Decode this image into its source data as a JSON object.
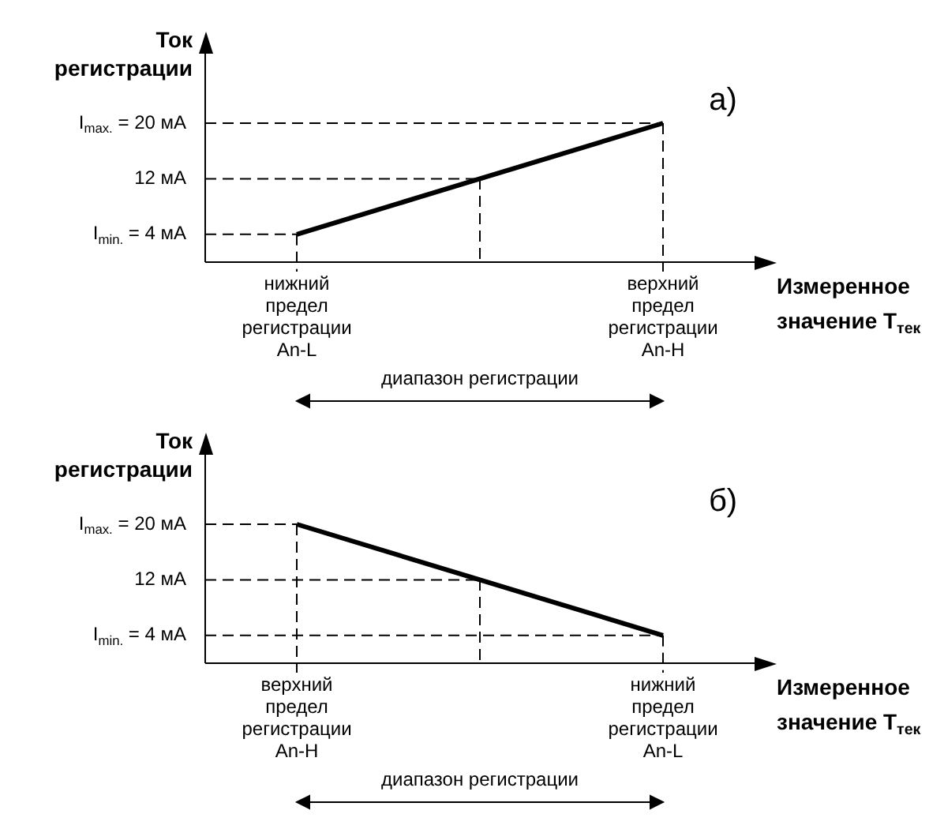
{
  "chart_data": [
    {
      "type": "line",
      "ylabel": "Ток регистрации",
      "xlabel": "Измеренное значение T$_{тек}$",
      "categories": [
        "нижний предел регистрации An-L",
        null,
        "верхний предел регистрации An-H"
      ],
      "series": [
        {
          "color": "#000000",
          "values": [
            4,
            12,
            20
          ]
        }
      ],
      "ylim": [
        0,
        30
      ],
      "yticks": [
        {
          "value": 4,
          "label": "I$_{min.}$ = 4 мА"
        },
        {
          "value": 12,
          "label": "12 мА"
        },
        {
          "value": 20,
          "label": "I$_{max.}$ = 20 мА"
        }
      ],
      "ref_lines": [
        {
          "axis": "y",
          "value": 4,
          "line_style": "dashed"
        },
        {
          "axis": "y",
          "value": 12,
          "line_style": "dashed"
        },
        {
          "axis": "y",
          "value": 20,
          "line_style": "dashed"
        },
        {
          "axis": "x",
          "value": "нижний предел регистрации An-L",
          "line_style": "dashed"
        },
        {
          "axis": "x",
          "value": "верхний предел регистрации An-H",
          "line_style": "dashed"
        }
      ],
      "annotations": [
        "диапазон регистрации",
        "а)"
      ],
      "grid": false,
      "legend": false,
      "marker": "none",
      "line_style": "solid"
    },
    {
      "type": "line",
      "ylabel": "Ток регистрации",
      "xlabel": "Измеренное значение T$_{тек}$",
      "categories": [
        "верхний предел регистрации An-H",
        null,
        "нижний предел регистрации An-L"
      ],
      "series": [
        {
          "color": "#000000",
          "values": [
            20,
            12,
            4
          ]
        }
      ],
      "ylim": [
        0,
        30
      ],
      "yticks": [
        {
          "value": 4,
          "label": "I$_{min.}$ = 4 мА"
        },
        {
          "value": 12,
          "label": "12 мА"
        },
        {
          "value": 20,
          "label": "I$_{max.}$ = 20 мА"
        }
      ],
      "ref_lines": [
        {
          "axis": "y",
          "value": 4,
          "line_style": "dashed"
        },
        {
          "axis": "y",
          "value": 12,
          "line_style": "dashed"
        },
        {
          "axis": "y",
          "value": 20,
          "line_style": "dashed"
        },
        {
          "axis": "x",
          "value": "верхний предел регистрации An-H",
          "line_style": "dashed"
        },
        {
          "axis": "x",
          "value": "нижний предел регистрации An-L",
          "line_style": "dashed"
        }
      ],
      "annotations": [
        "диапазон регистрации",
        "б)"
      ],
      "grid": false,
      "legend": false,
      "marker": "none",
      "line_style": "solid"
    }
  ]
}
